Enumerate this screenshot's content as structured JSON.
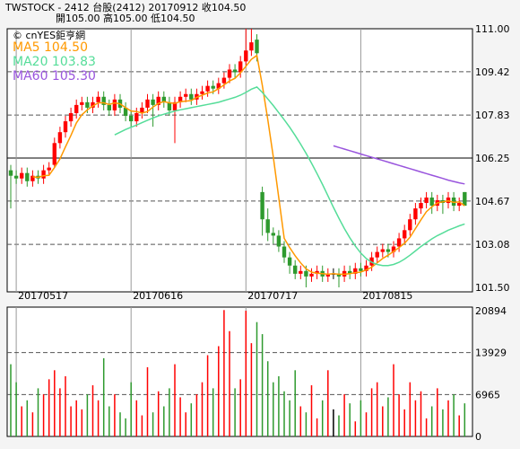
{
  "chart_data": {
    "type": "candlestick",
    "header": [
      "TWSTOCK  -  2412  台股(2412) 20170912   收104.50",
      "開105.00   高105.00   低104.50"
    ],
    "source": "© cnYES鉅亨網",
    "up_color": "#ff0000",
    "down_color": "#2e9a2e",
    "flat_color": "#000000",
    "open": [
      105.8,
      105.6,
      105.5,
      105.7,
      105.4,
      105.6,
      105.5,
      105.8,
      106.0,
      106.8,
      107.2,
      107.6,
      107.9,
      108.2,
      108.3,
      108.1,
      108.3,
      108.5,
      108.2,
      108.0,
      108.4,
      108.1,
      107.8,
      107.6,
      107.9,
      108.1,
      108.4,
      108.2,
      108.5,
      108.3,
      108.0,
      108.3,
      108.5,
      108.6,
      108.4,
      108.6,
      108.7,
      108.9,
      108.8,
      109.0,
      109.2,
      109.5,
      109.4,
      109.8,
      110.2,
      110.6,
      105.0,
      104.0,
      103.5,
      103.4,
      103.0,
      102.6,
      102.3,
      102.0,
      102.1,
      101.9,
      102.0,
      102.1,
      101.9,
      102.0,
      102.0,
      101.9,
      102.1,
      102.0,
      102.2,
      102.1,
      102.3,
      102.6,
      102.8,
      102.9,
      102.8,
      103.0,
      103.3,
      103.6,
      104.0,
      104.4,
      104.6,
      104.8,
      104.5,
      104.7,
      104.6,
      104.8,
      104.5,
      105.0
    ],
    "high": [
      106.0,
      105.8,
      105.9,
      105.9,
      105.8,
      105.8,
      106.0,
      106.1,
      107.0,
      107.4,
      107.8,
      108.1,
      108.4,
      108.5,
      108.5,
      108.5,
      108.7,
      108.7,
      108.4,
      108.6,
      108.6,
      108.3,
      108.0,
      108.1,
      108.3,
      108.6,
      108.6,
      108.7,
      108.7,
      108.5,
      108.5,
      108.7,
      108.8,
      108.8,
      108.8,
      108.9,
      109.1,
      109.1,
      109.2,
      109.4,
      109.7,
      109.7,
      110.0,
      111.0,
      111.0,
      110.8,
      105.2,
      104.4,
      103.7,
      103.6,
      103.2,
      102.8,
      102.5,
      102.3,
      102.3,
      102.2,
      102.3,
      102.3,
      102.2,
      102.2,
      102.2,
      102.3,
      102.3,
      102.4,
      102.4,
      102.5,
      102.8,
      103.0,
      103.1,
      103.1,
      103.2,
      103.5,
      103.8,
      104.2,
      104.6,
      104.8,
      105.0,
      105.0,
      104.9,
      104.9,
      105.0,
      105.0,
      104.8,
      105.0
    ],
    "low": [
      104.4,
      105.3,
      105.3,
      105.2,
      105.2,
      105.3,
      105.3,
      105.6,
      105.9,
      106.6,
      107.0,
      107.4,
      107.7,
      108.0,
      107.9,
      107.9,
      108.1,
      108.0,
      107.8,
      107.8,
      107.9,
      107.6,
      107.4,
      107.4,
      107.7,
      107.9,
      107.4,
      108.0,
      108.1,
      107.8,
      106.8,
      108.1,
      108.3,
      108.2,
      108.2,
      108.4,
      108.5,
      108.6,
      108.6,
      108.8,
      109.0,
      109.2,
      109.2,
      109.6,
      110.0,
      109.8,
      103.4,
      103.2,
      103.1,
      102.8,
      102.4,
      102.0,
      101.8,
      101.8,
      101.5,
      101.7,
      101.8,
      101.7,
      101.7,
      101.8,
      101.5,
      101.7,
      101.8,
      101.8,
      101.9,
      101.9,
      102.1,
      102.4,
      102.6,
      102.6,
      102.6,
      102.8,
      103.1,
      103.4,
      103.8,
      104.2,
      104.4,
      104.2,
      104.3,
      104.2,
      104.4,
      104.3,
      104.3,
      104.5
    ],
    "close": [
      105.6,
      105.5,
      105.7,
      105.4,
      105.6,
      105.5,
      105.8,
      105.9,
      106.8,
      107.2,
      107.6,
      107.9,
      108.2,
      108.3,
      108.1,
      108.3,
      108.5,
      108.2,
      108.0,
      108.4,
      108.1,
      107.8,
      107.6,
      107.9,
      108.1,
      108.4,
      108.2,
      108.5,
      108.3,
      108.0,
      108.3,
      108.5,
      108.6,
      108.4,
      108.6,
      108.7,
      108.9,
      108.8,
      109.0,
      109.2,
      109.5,
      109.4,
      109.8,
      110.2,
      110.5,
      110.1,
      104.0,
      103.5,
      103.4,
      103.0,
      102.6,
      102.3,
      102.0,
      102.1,
      101.9,
      102.0,
      102.1,
      101.9,
      102.0,
      102.0,
      101.9,
      102.1,
      102.0,
      102.2,
      102.1,
      102.3,
      102.6,
      102.8,
      102.9,
      102.8,
      103.0,
      103.3,
      103.6,
      104.0,
      104.4,
      104.6,
      104.8,
      104.5,
      104.7,
      104.6,
      104.8,
      104.5,
      104.6,
      104.5
    ],
    "lines": [
      {
        "name": "MA5 104.50",
        "color": "#ff9900",
        "values": [
          null,
          null,
          null,
          null,
          105.56,
          105.54,
          105.6,
          105.62,
          105.9,
          106.22,
          106.66,
          107.08,
          107.54,
          107.84,
          108.02,
          108.16,
          108.28,
          108.28,
          108.22,
          108.28,
          108.24,
          108.1,
          107.98,
          107.96,
          107.9,
          107.96,
          108.12,
          108.26,
          108.32,
          108.28,
          108.26,
          108.32,
          108.34,
          108.36,
          108.48,
          108.56,
          108.64,
          108.68,
          108.8,
          108.94,
          109.08,
          109.18,
          109.38,
          109.62,
          109.88,
          110.02,
          108.92,
          107.66,
          106.3,
          104.8,
          103.3,
          102.96,
          102.66,
          102.4,
          102.18,
          102.06,
          102.02,
          102.0,
          101.98,
          102.0,
          101.98,
          101.98,
          102.0,
          102.04,
          102.06,
          102.14,
          102.24,
          102.4,
          102.56,
          102.68,
          102.82,
          102.96,
          103.12,
          103.34,
          103.66,
          103.98,
          104.28,
          104.46,
          104.6,
          104.64,
          104.68,
          104.62,
          104.64,
          104.5
        ]
      },
      {
        "name": "MA20 103.83",
        "color": "#55dd99",
        "values": [
          null,
          null,
          null,
          null,
          null,
          null,
          null,
          null,
          null,
          null,
          null,
          null,
          null,
          null,
          null,
          null,
          null,
          null,
          null,
          107.1,
          107.2,
          107.3,
          107.38,
          107.46,
          107.55,
          107.64,
          107.72,
          107.8,
          107.86,
          107.92,
          107.98,
          108.02,
          108.06,
          108.1,
          108.14,
          108.18,
          108.22,
          108.26,
          108.3,
          108.36,
          108.42,
          108.48,
          108.56,
          108.66,
          108.78,
          108.86,
          108.66,
          108.42,
          108.18,
          107.92,
          107.66,
          107.38,
          107.08,
          106.76,
          106.42,
          106.06,
          105.68,
          105.28,
          104.86,
          104.44,
          104.04,
          103.66,
          103.32,
          103.02,
          102.76,
          102.56,
          102.42,
          102.34,
          102.3,
          102.3,
          102.34,
          102.42,
          102.54,
          102.68,
          102.84,
          103.0,
          103.14,
          103.28,
          103.4,
          103.5,
          103.6,
          103.68,
          103.76,
          103.83
        ]
      },
      {
        "name": "MA60 105.30",
        "color": "#9955dd",
        "values": [
          null,
          null,
          null,
          null,
          null,
          null,
          null,
          null,
          null,
          null,
          null,
          null,
          null,
          null,
          null,
          null,
          null,
          null,
          null,
          null,
          null,
          null,
          null,
          null,
          null,
          null,
          null,
          null,
          null,
          null,
          null,
          null,
          null,
          null,
          null,
          null,
          null,
          null,
          null,
          null,
          null,
          null,
          null,
          null,
          null,
          null,
          null,
          null,
          null,
          null,
          null,
          null,
          null,
          null,
          null,
          null,
          null,
          null,
          null,
          106.7,
          106.64,
          106.58,
          106.52,
          106.46,
          106.4,
          106.34,
          106.28,
          106.22,
          106.16,
          106.1,
          106.04,
          105.98,
          105.92,
          105.86,
          105.8,
          105.74,
          105.68,
          105.62,
          105.56,
          105.5,
          105.44,
          105.39,
          105.34,
          105.3
        ]
      }
    ],
    "ylim": [
      101.5,
      111
    ],
    "yticks": [
      {
        "value": 111,
        "label": "111.00"
      },
      {
        "value": 109.42,
        "label": "109.42"
      },
      {
        "value": 107.83,
        "label": "107.83"
      },
      {
        "value": 106.25,
        "label": "106.25"
      },
      {
        "value": 104.67,
        "label": "104.67"
      },
      {
        "value": 103.08,
        "label": "103.08"
      },
      {
        "value": 101.5,
        "label": "101.50"
      }
    ],
    "xticks": [
      {
        "value": 1,
        "label": "20170517"
      },
      {
        "value": 22,
        "label": "20170616"
      },
      {
        "value": 43,
        "label": "20170717"
      },
      {
        "value": 64,
        "label": "20170815"
      }
    ],
    "volume": {
      "values": [
        12000,
        9000,
        5000,
        6000,
        4000,
        8000,
        7000,
        9500,
        11000,
        8000,
        10000,
        5000,
        6000,
        4500,
        7000,
        8500,
        6000,
        13000,
        5000,
        7000,
        4000,
        3000,
        9000,
        6000,
        3500,
        11500,
        4000,
        7500,
        5000,
        8000,
        12000,
        6500,
        4000,
        5500,
        7000,
        9000,
        13500,
        8000,
        15000,
        21000,
        17500,
        8000,
        9500,
        20894,
        15500,
        19000,
        17000,
        12500,
        9000,
        10000,
        7500,
        6000,
        11000,
        5000,
        4000,
        8500,
        3000,
        6000,
        11000,
        4500,
        3500,
        7000,
        5500,
        2500,
        6000,
        4000,
        8000,
        9000,
        5000,
        6500,
        12000,
        7000,
        4500,
        9000,
        6000,
        7500,
        3000,
        5000,
        8000,
        4500,
        6000,
        7000,
        3500,
        5500
      ],
      "ylim": [
        0,
        20894
      ],
      "yticks": [
        20894,
        13929,
        6965,
        0
      ]
    }
  }
}
